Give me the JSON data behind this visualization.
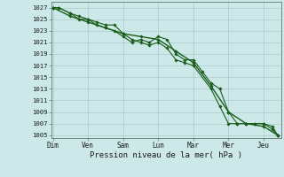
{
  "background_color": "#cce8e8",
  "grid_color": "#aacccc",
  "line_color": "#1a5c1a",
  "marker_color": "#1a5c1a",
  "xlabel": "Pression niveau de la mer( hPa )",
  "days": [
    "Dim",
    "Ven",
    "Sam",
    "Lun",
    "Mar",
    "Mer",
    "Jeu"
  ],
  "day_positions": [
    0,
    1,
    2,
    3,
    4,
    5,
    6
  ],
  "xlim": [
    -0.05,
    6.5
  ],
  "ylim": [
    1004.5,
    1028
  ],
  "yticks": [
    1005,
    1007,
    1009,
    1011,
    1013,
    1015,
    1017,
    1019,
    1021,
    1023,
    1025,
    1027
  ],
  "series": [
    {
      "x": [
        0.0,
        0.16,
        0.5,
        0.75,
        1.0,
        1.25,
        1.5,
        1.75,
        2.0,
        2.25,
        2.5,
        2.75,
        3.0,
        3.25,
        3.5,
        3.75,
        4.0,
        4.5,
        4.75,
        5.0,
        5.25,
        5.5,
        5.75,
        6.0,
        6.25,
        6.4
      ],
      "y": [
        1027,
        1027,
        1026,
        1025,
        1025,
        1024.5,
        1024,
        1024,
        1022.5,
        1021.5,
        1021,
        1020.5,
        1021,
        1020,
        1018,
        1017.5,
        1017,
        1013,
        1010,
        1007,
        1007,
        1007,
        1007,
        1007,
        1006,
        1005
      ],
      "linewidth": 0.8
    },
    {
      "x": [
        0.0,
        0.16,
        0.5,
        0.75,
        1.0,
        1.25,
        1.5,
        1.75,
        2.0,
        2.25,
        2.5,
        2.75,
        3.0,
        3.25,
        3.5,
        3.75,
        4.0,
        4.25,
        4.5,
        4.75,
        5.0,
        5.25,
        5.5,
        5.75,
        6.0,
        6.25,
        6.4
      ],
      "y": [
        1027,
        1027,
        1026,
        1025.5,
        1025,
        1024,
        1023.5,
        1023,
        1022,
        1021,
        1021.5,
        1021,
        1022,
        1021.5,
        1019,
        1018,
        1018,
        1016,
        1014,
        1013,
        1009,
        1007,
        1007,
        1007,
        1007,
        1006.5,
        1005
      ],
      "linewidth": 0.8
    },
    {
      "x": [
        0.0,
        0.5,
        1.0,
        1.5,
        2.0,
        2.5,
        3.0,
        3.5,
        4.0,
        4.5,
        5.0,
        5.5,
        6.0,
        6.4
      ],
      "y": [
        1027,
        1025.5,
        1024.5,
        1023.5,
        1022.5,
        1022,
        1021.5,
        1019.5,
        1017.5,
        1013.5,
        1009,
        1007,
        1006.5,
        1005
      ],
      "linewidth": 1.0
    }
  ]
}
